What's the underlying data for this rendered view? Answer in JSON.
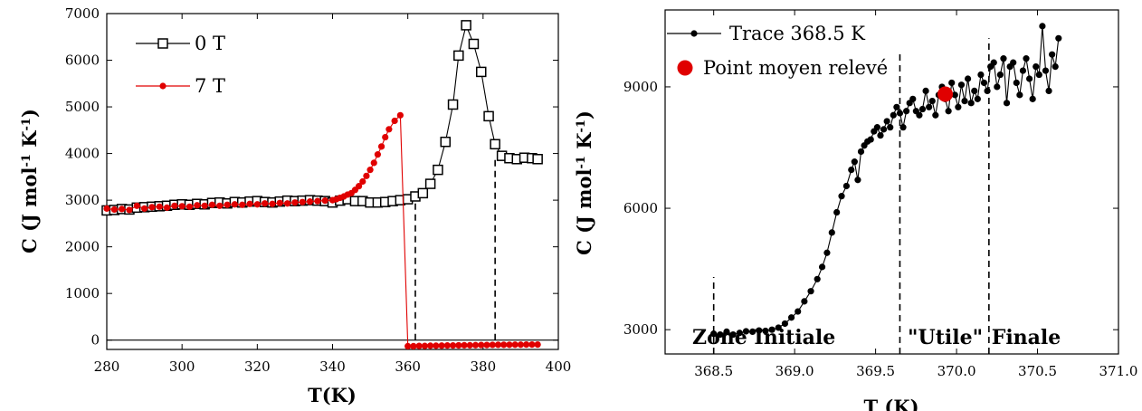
{
  "chart_data": [
    {
      "type": "line",
      "xlabel": "T(K)",
      "ylabel_main": "C (J mol",
      "ylabel_sup1": "-1",
      "ylabel_mid": " K",
      "ylabel_sup2": "-1",
      "ylabel_end": ")",
      "xlim": [
        280,
        400
      ],
      "ylim": [
        -200,
        7000
      ],
      "xticks": [
        280,
        300,
        320,
        340,
        360,
        380,
        400
      ],
      "yticks": [
        0,
        1000,
        2000,
        3000,
        4000,
        5000,
        6000,
        7000
      ],
      "legend": "top-left",
      "vlines": [
        {
          "x": 362,
          "y0": 0,
          "y1": 2950
        },
        {
          "x": 383.2,
          "y0": 0,
          "y1": 3950
        }
      ],
      "hline_y": 0,
      "series": [
        {
          "name": "0 T",
          "color": "#000000",
          "marker": "open-square",
          "x": [
            280,
            282,
            284,
            286,
            288,
            290,
            292,
            294,
            296,
            298,
            300,
            302,
            304,
            306,
            308,
            310,
            312,
            314,
            316,
            318,
            320,
            322,
            324,
            326,
            328,
            330,
            332,
            334,
            336,
            338,
            340,
            342,
            344,
            346,
            348,
            350,
            352,
            354,
            356,
            358,
            360,
            362,
            364,
            366,
            368,
            370,
            372,
            373.5,
            375.5,
            377.5,
            379.5,
            381.5,
            383.2,
            385,
            387,
            389,
            391,
            393,
            394.5
          ],
          "y": [
            2780,
            2790,
            2810,
            2800,
            2840,
            2850,
            2860,
            2870,
            2880,
            2900,
            2910,
            2900,
            2920,
            2910,
            2940,
            2950,
            2930,
            2960,
            2950,
            2970,
            2980,
            2960,
            2950,
            2970,
            2990,
            2980,
            2990,
            3000,
            2990,
            2980,
            2950,
            2990,
            3020,
            2980,
            2980,
            2950,
            2950,
            2960,
            2980,
            3000,
            3020,
            3080,
            3150,
            3350,
            3650,
            4250,
            5050,
            6100,
            6750,
            6350,
            5750,
            4800,
            4200,
            3950,
            3900,
            3880,
            3910,
            3900,
            3880
          ]
        },
        {
          "name": "7 T",
          "color": "#e00000",
          "marker": "filled-circle",
          "x": [
            280,
            282,
            284,
            286,
            288,
            290,
            292,
            294,
            296,
            298,
            300,
            302,
            304,
            306,
            308,
            310,
            312,
            314,
            316,
            318,
            320,
            322,
            324,
            326,
            328,
            330,
            332,
            334,
            336,
            338,
            340,
            341,
            342,
            343,
            344,
            345,
            346,
            347,
            348,
            349,
            350,
            351,
            352,
            353,
            354,
            355,
            356.5,
            358,
            360,
            361.5,
            363,
            364.5,
            366,
            367.5,
            369,
            370.5,
            372,
            373.5,
            375,
            376.5,
            378,
            379.5,
            381,
            382.5,
            384,
            385.5,
            387,
            388.5,
            390,
            391.5,
            393,
            394.5
          ],
          "y": [
            2820,
            2800,
            2810,
            2790,
            2880,
            2820,
            2850,
            2860,
            2840,
            2880,
            2870,
            2860,
            2890,
            2880,
            2900,
            2880,
            2900,
            2910,
            2900,
            2920,
            2910,
            2930,
            2920,
            2940,
            2930,
            2950,
            2960,
            2970,
            2980,
            2990,
            3000,
            3020,
            3050,
            3080,
            3120,
            3150,
            3220,
            3300,
            3400,
            3520,
            3650,
            3800,
            3980,
            4150,
            4350,
            4520,
            4700,
            4820,
            -130,
            -130,
            -125,
            -125,
            -120,
            -120,
            -118,
            -115,
            -115,
            -112,
            -110,
            -110,
            -108,
            -105,
            -105,
            -102,
            -100,
            -100,
            -100,
            -98,
            -98,
            -95,
            -95,
            -95
          ]
        }
      ]
    },
    {
      "type": "line",
      "xlabel": "T (K)",
      "ylabel_main": "C (J mol",
      "ylabel_sup1": "-1",
      "ylabel_mid": " K",
      "ylabel_sup2": "-1",
      "ylabel_end": ")",
      "xlim": [
        368.2,
        371.0
      ],
      "ylim": [
        2400,
        10900
      ],
      "xticks": [
        368.5,
        369.0,
        369.5,
        370.0,
        370.5,
        371.0
      ],
      "xtick_labels": [
        "368.5",
        "369.0",
        "369.5",
        "370.0",
        "370.5",
        "371.0"
      ],
      "yticks": [
        3000,
        6000,
        9000
      ],
      "legend": "top-left",
      "vlines": [
        {
          "x": 368.5,
          "y0": 2400,
          "y1": 4300
        },
        {
          "x": 369.65,
          "y0": 2400,
          "y1": 9900
        },
        {
          "x": 370.2,
          "y0": 2400,
          "y1": 10200
        }
      ],
      "zones": [
        "Zone Initiale",
        "\"Utile\"",
        "Finale"
      ],
      "zone_x": [
        368.81,
        369.93,
        370.43
      ],
      "zone_y": 2650,
      "series": [
        {
          "name": "Trace 368.5 K",
          "color": "#000000",
          "marker": "filled-circle",
          "x": [
            368.5,
            368.54,
            368.58,
            368.62,
            368.66,
            368.7,
            368.74,
            368.78,
            368.82,
            368.86,
            368.9,
            368.94,
            368.98,
            369.02,
            369.06,
            369.1,
            369.14,
            369.17,
            369.2,
            369.23,
            369.26,
            369.29,
            369.32,
            369.35,
            369.37,
            369.39,
            369.41,
            369.43,
            369.45,
            369.47,
            369.49,
            369.51,
            369.53,
            369.55,
            369.57,
            369.59,
            369.61,
            369.63,
            369.65,
            369.67,
            369.69,
            369.71,
            369.73,
            369.75,
            369.77,
            369.79,
            369.81,
            369.83,
            369.85,
            369.87,
            369.89,
            369.91,
            369.93,
            369.95,
            369.97,
            369.99,
            370.01,
            370.03,
            370.05,
            370.07,
            370.09,
            370.11,
            370.13,
            370.15,
            370.17,
            370.19,
            370.21,
            370.23,
            370.25,
            370.27,
            370.29,
            370.31,
            370.33,
            370.35,
            370.37,
            370.39,
            370.41,
            370.43,
            370.45,
            370.47,
            370.49,
            370.51,
            370.53,
            370.55,
            370.57,
            370.59,
            370.61,
            370.63
          ],
          "y": [
            2900,
            2880,
            2950,
            2880,
            2920,
            2960,
            2950,
            2980,
            2970,
            3000,
            3050,
            3150,
            3300,
            3450,
            3700,
            3950,
            4250,
            4550,
            4900,
            5400,
            5900,
            6300,
            6550,
            6950,
            7150,
            6700,
            7400,
            7550,
            7650,
            7700,
            7900,
            8000,
            7800,
            7950,
            8150,
            8000,
            8300,
            8500,
            8350,
            8000,
            8400,
            8600,
            8700,
            8400,
            8300,
            8450,
            8900,
            8500,
            8650,
            8300,
            8800,
            9000,
            8700,
            8400,
            9100,
            8800,
            8500,
            9050,
            8650,
            9200,
            8600,
            8900,
            8700,
            9300,
            9100,
            8900,
            9500,
            9600,
            9000,
            9300,
            9700,
            8600,
            9500,
            9600,
            9100,
            8800,
            9400,
            9700,
            9200,
            8700,
            9500,
            9300,
            10500,
            9400,
            8900,
            9800,
            9500,
            10200
          ]
        },
        {
          "name": "Point moyen relevé",
          "color": "#e00000",
          "marker": "big-circle",
          "x": [
            369.93
          ],
          "y": [
            8820
          ]
        }
      ]
    }
  ]
}
